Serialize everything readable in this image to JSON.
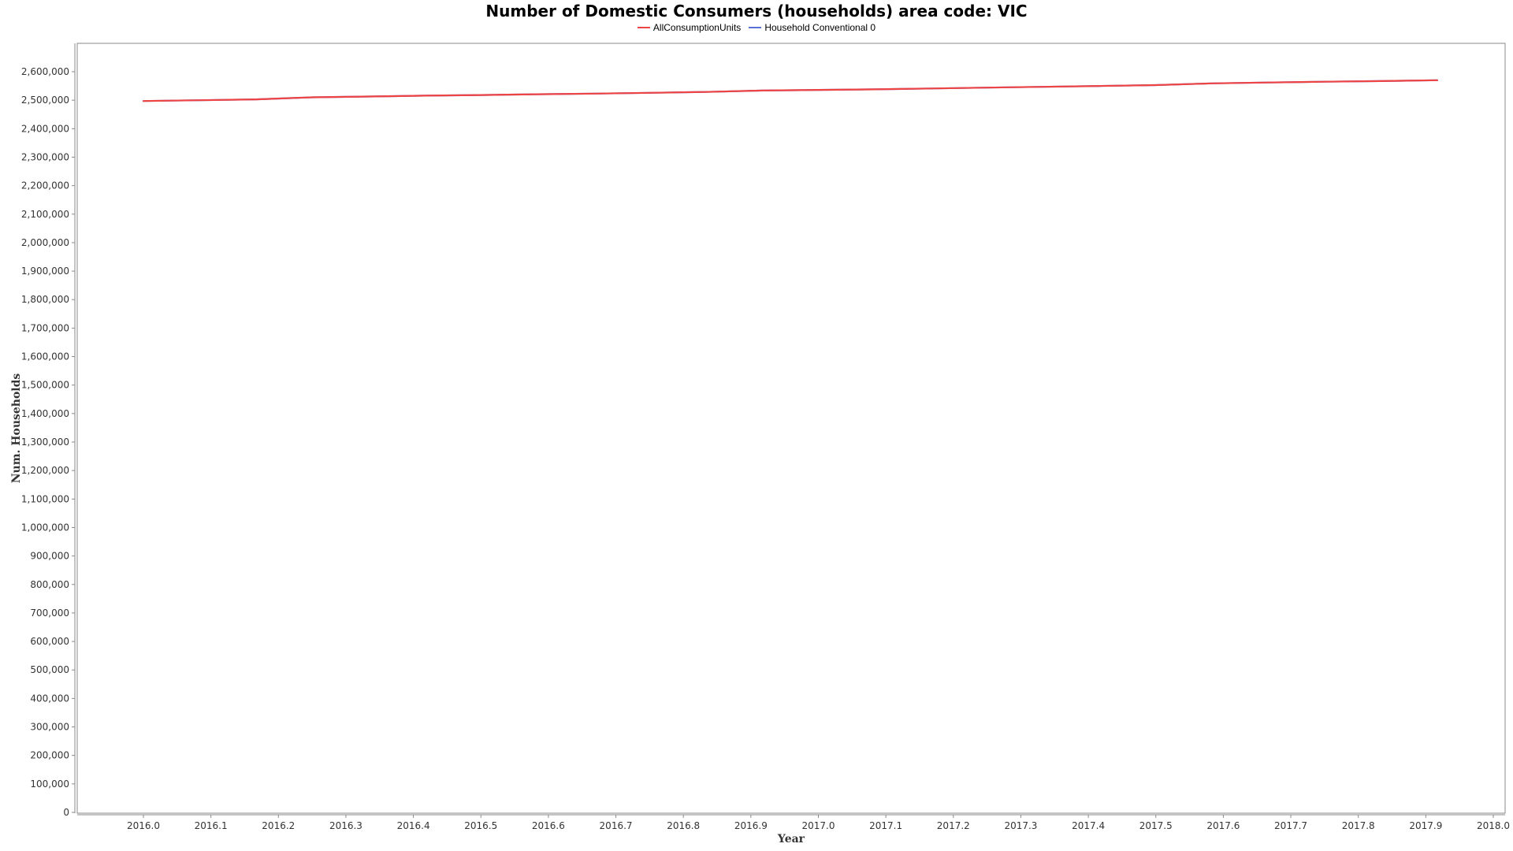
{
  "chart_data": {
    "type": "line",
    "title": "Number of Domestic Consumers (households) area code: VIC",
    "xlabel": "Year",
    "ylabel": "Num. Households",
    "xlim": [
      1999.9,
      2001.9
    ],
    "ylim": [
      0,
      2700000
    ],
    "x_ticks": [
      "2016.0",
      "2016.1",
      "2016.2",
      "2016.3",
      "2016.4",
      "2016.5",
      "2016.6",
      "2016.7",
      "2016.8",
      "2016.9",
      "2017.0",
      "2017.1",
      "2017.2",
      "2017.3",
      "2017.4",
      "2017.5",
      "2017.6",
      "2017.7",
      "2017.8",
      "2017.9",
      "2018.0"
    ],
    "y_ticks": [
      "0",
      "100,000",
      "200,000",
      "300,000",
      "400,000",
      "500,000",
      "600,000",
      "700,000",
      "800,000",
      "900,000",
      "1,000,000",
      "1,100,000",
      "1,200,000",
      "1,300,000",
      "1,400,000",
      "1,500,000",
      "1,600,000",
      "1,700,000",
      "1,800,000",
      "1,900,000",
      "2,000,000",
      "2,100,000",
      "2,200,000",
      "2,300,000",
      "2,400,000",
      "2,500,000",
      "2,600,000"
    ],
    "legend_position": "top-center",
    "grid": false,
    "series": [
      {
        "name": "AllConsumptionUnits",
        "color": "#ef4444",
        "x": [
          2016.0,
          2016.083,
          2016.167,
          2016.25,
          2016.333,
          2016.417,
          2016.5,
          2016.583,
          2016.667,
          2016.75,
          2016.833,
          2016.917,
          2017.0,
          2017.083,
          2017.167,
          2017.25,
          2017.333,
          2017.417,
          2017.5,
          2017.583,
          2017.667,
          2017.75,
          2017.833,
          2017.917
        ],
        "y": [
          2497000,
          2500000,
          2503000,
          2510000,
          2513000,
          2516000,
          2518000,
          2521000,
          2523000,
          2526000,
          2529000,
          2534000,
          2536000,
          2538000,
          2541000,
          2544000,
          2547000,
          2550000,
          2553000,
          2559000,
          2562000,
          2565000,
          2567000,
          2570000
        ]
      },
      {
        "name": "Household Conventional 0",
        "color": "#5b6fd6",
        "x": [
          2016.0,
          2016.083,
          2016.167,
          2016.25,
          2016.333,
          2016.417,
          2016.5,
          2016.583,
          2016.667,
          2016.75,
          2016.833,
          2016.917,
          2017.0,
          2017.083,
          2017.167,
          2017.25,
          2017.333,
          2017.417,
          2017.5,
          2017.583,
          2017.667,
          2017.75,
          2017.833,
          2017.917
        ],
        "y": [
          2497000,
          2500000,
          2503000,
          2510000,
          2513000,
          2516000,
          2518000,
          2521000,
          2523000,
          2526000,
          2529000,
          2534000,
          2536000,
          2538000,
          2541000,
          2544000,
          2547000,
          2550000,
          2553000,
          2559000,
          2562000,
          2565000,
          2567000,
          2570000
        ]
      }
    ]
  }
}
